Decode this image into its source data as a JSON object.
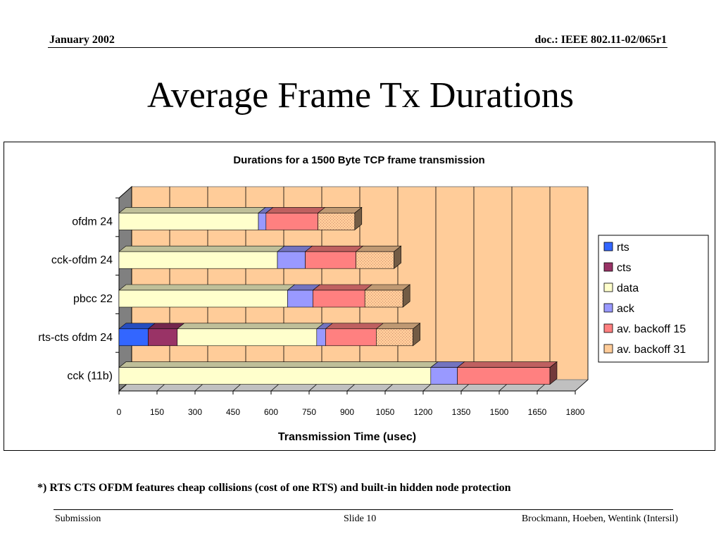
{
  "header": {
    "left": "January 2002",
    "right": "doc.: IEEE 802.11-02/065r1"
  },
  "slide_title": "Average Frame Tx Durations",
  "footnote": "*) RTS CTS OFDM features cheap collisions (cost of one RTS) and built-in hidden node protection",
  "footer": {
    "left": "Submission",
    "center": "Slide 10",
    "right": "Brockmann, Hoeben, Wentink (Intersil)"
  },
  "colors": {
    "rts": "#3366ff",
    "cts": "#993366",
    "data": "#ffffcc",
    "ack": "#9999ff",
    "backoff15": "#ff8080",
    "backoff31": "#ffcc99",
    "plot_bg": "#ffcc99",
    "wall": "#808080"
  },
  "chart_data": {
    "type": "bar",
    "orientation": "horizontal",
    "stacked": true,
    "title": "Durations for a 1500 Byte TCP frame transmission",
    "xlabel": "Transmission Time (usec)",
    "ylabel": "",
    "xlim": [
      0,
      1800
    ],
    "xticks": [
      0,
      150,
      300,
      450,
      600,
      750,
      900,
      1050,
      1200,
      1350,
      1500,
      1650,
      1800
    ],
    "grid": true,
    "legend_position": "right",
    "categories": [
      "ofdm 24",
      "cck-ofdm 24",
      "pbcc 22",
      "rts-cts ofdm 24",
      "cck (11b)"
    ],
    "series": [
      {
        "name": "rts",
        "color": "#3366ff",
        "values": [
          0,
          0,
          0,
          115,
          0
        ]
      },
      {
        "name": "cts",
        "color": "#993366",
        "values": [
          0,
          0,
          0,
          115,
          0
        ]
      },
      {
        "name": "data",
        "color": "#ffffcc",
        "values": [
          550,
          625,
          665,
          550,
          1230
        ]
      },
      {
        "name": "ack",
        "color": "#9999ff",
        "values": [
          30,
          110,
          100,
          35,
          105
        ]
      },
      {
        "name": "av. backoff 15",
        "color": "#ff8080",
        "values": [
          205,
          200,
          205,
          200,
          365
        ]
      },
      {
        "name": "av. backoff 31",
        "color": "#ffcc99",
        "values": [
          145,
          150,
          150,
          145,
          0
        ]
      }
    ]
  }
}
